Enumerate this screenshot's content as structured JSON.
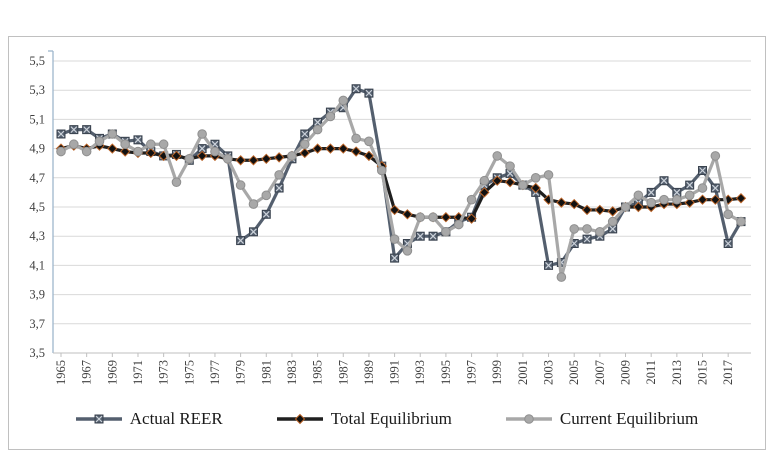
{
  "figure": {
    "background": "#ffffff",
    "frame_border": "#c0c0c0",
    "gridline_color": "#d9d9d9",
    "y_axis_color": "#9fb6cd",
    "x_axis_color": "#bfbfbf"
  },
  "chart_data": {
    "type": "line",
    "title": "",
    "xlabel": "",
    "ylabel": "",
    "ylim": [
      3.5,
      5.5
    ],
    "ytick_step": 0.2,
    "ytick_labels": [
      "3,5",
      "3,7",
      "3,9",
      "4,1",
      "4,3",
      "4,5",
      "4,7",
      "4,9",
      "5,1",
      "5,3",
      "5,5"
    ],
    "grid": true,
    "legend_position": "bottom",
    "x_tick_step": 2,
    "x": [
      1965,
      1966,
      1967,
      1968,
      1969,
      1970,
      1971,
      1972,
      1973,
      1974,
      1975,
      1976,
      1977,
      1978,
      1979,
      1980,
      1981,
      1982,
      1983,
      1984,
      1985,
      1986,
      1987,
      1988,
      1989,
      1990,
      1991,
      1992,
      1993,
      1994,
      1995,
      1996,
      1997,
      1998,
      1999,
      2000,
      2001,
      2002,
      2003,
      2004,
      2005,
      2006,
      2007,
      2008,
      2009,
      2010,
      2011,
      2012,
      2013,
      2014,
      2015,
      2016,
      2017,
      2018
    ],
    "series": [
      {
        "name": "Actual REER",
        "color": "#545f6e",
        "marker": "square-x",
        "values": [
          5.0,
          5.03,
          5.03,
          4.97,
          5.0,
          4.95,
          4.96,
          4.88,
          4.85,
          4.86,
          4.82,
          4.9,
          4.93,
          4.85,
          4.27,
          4.33,
          4.45,
          4.63,
          4.83,
          5.0,
          5.08,
          5.15,
          5.18,
          5.31,
          5.28,
          4.78,
          4.15,
          4.25,
          4.3,
          4.3,
          4.33,
          4.4,
          4.43,
          4.65,
          4.7,
          4.73,
          4.65,
          4.6,
          4.1,
          4.12,
          4.25,
          4.28,
          4.3,
          4.35,
          4.5,
          4.53,
          4.6,
          4.68,
          4.6,
          4.65,
          4.75,
          4.63,
          4.25,
          4.4
        ]
      },
      {
        "name": "Total Equilibrium",
        "color": "#1f1f1f",
        "marker": "diamond",
        "marker_stroke": "#b86125",
        "values": [
          4.9,
          4.92,
          4.9,
          4.92,
          4.9,
          4.88,
          4.87,
          4.87,
          4.85,
          4.85,
          4.83,
          4.85,
          4.85,
          4.83,
          4.82,
          4.82,
          4.83,
          4.84,
          4.85,
          4.87,
          4.9,
          4.9,
          4.9,
          4.88,
          4.85,
          4.78,
          4.48,
          4.45,
          4.43,
          4.43,
          4.43,
          4.43,
          4.42,
          4.6,
          4.68,
          4.67,
          4.65,
          4.63,
          4.55,
          4.53,
          4.52,
          4.48,
          4.48,
          4.47,
          4.5,
          4.5,
          4.5,
          4.52,
          4.52,
          4.53,
          4.55,
          4.55,
          4.55,
          4.56
        ]
      },
      {
        "name": "Current Equilibrium",
        "color": "#a8a8a8",
        "marker": "circle",
        "values": [
          4.88,
          4.93,
          4.88,
          4.95,
          5.0,
          4.93,
          4.88,
          4.93,
          4.93,
          4.67,
          4.83,
          5.0,
          4.88,
          4.83,
          4.65,
          4.52,
          4.58,
          4.72,
          4.85,
          4.93,
          5.03,
          5.12,
          5.23,
          4.97,
          4.95,
          4.75,
          4.28,
          4.2,
          4.43,
          4.43,
          4.33,
          4.38,
          4.55,
          4.68,
          4.85,
          4.78,
          4.65,
          4.7,
          4.72,
          4.02,
          4.35,
          4.35,
          4.33,
          4.4,
          4.5,
          4.58,
          4.53,
          4.55,
          4.55,
          4.58,
          4.63,
          4.85,
          4.45,
          4.4
        ]
      }
    ]
  }
}
